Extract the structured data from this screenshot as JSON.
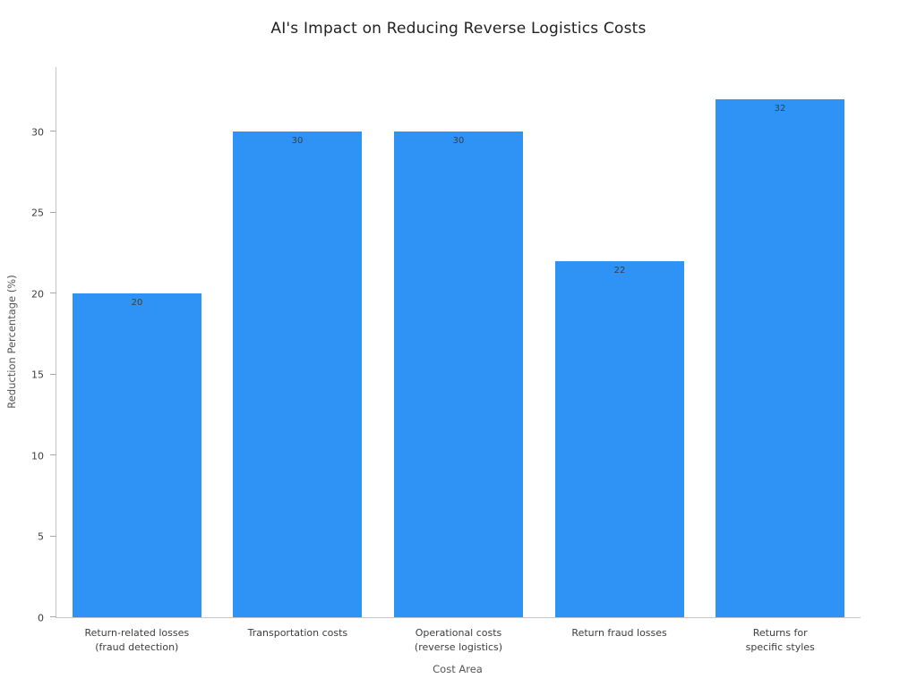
{
  "chart_data": {
    "type": "bar",
    "title": "AI's Impact on Reducing Reverse Logistics Costs",
    "xlabel": "Cost Area",
    "ylabel": "Reduction Percentage (%)",
    "categories": [
      "Return-related losses\n(fraud detection)",
      "Transportation costs",
      "Operational costs\n(reverse logistics)",
      "Return fraud losses",
      "Returns for\nspecific styles"
    ],
    "values": [
      20,
      30,
      30,
      22,
      32
    ],
    "value_labels": [
      "20",
      "30",
      "30",
      "22",
      "32"
    ],
    "yticks": [
      0,
      5,
      10,
      15,
      20,
      25,
      30
    ],
    "ylim": [
      0,
      34
    ],
    "grid": false,
    "legend_position": "none",
    "bar_color": "#2e93f5",
    "value_label_color": "#3d3d3d",
    "axis_color": "#c6c6c6"
  }
}
